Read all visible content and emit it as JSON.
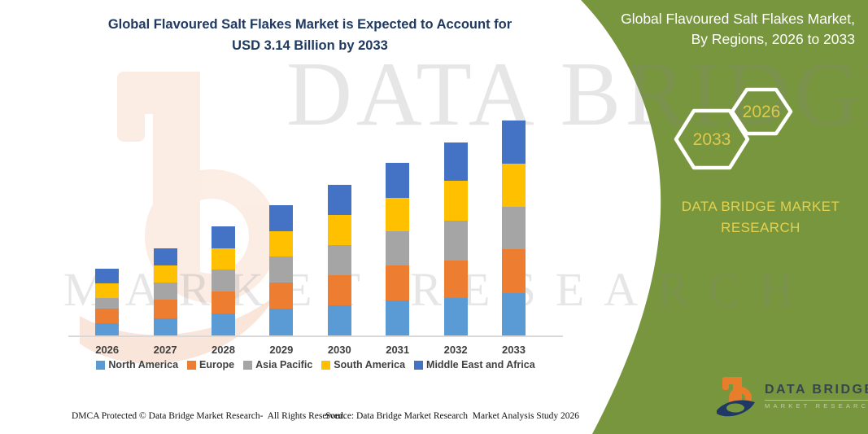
{
  "main_title": {
    "line1": "Global Flavoured Salt Flakes Market is Expected to Account for",
    "line2": "USD 3.14 Billion by 2033"
  },
  "chart_data": {
    "type": "bar",
    "stacked": true,
    "title": "Global Flavoured Salt Flakes Market is Expected to Account for USD 3.14 Billion by 2033",
    "unit": "USD Billion",
    "categories": [
      "2026",
      "2027",
      "2028",
      "2029",
      "2030",
      "2031",
      "2032",
      "2033"
    ],
    "series": [
      {
        "name": "North America",
        "color": "#5B9BD5",
        "values": [
          0.18,
          0.25,
          0.32,
          0.39,
          0.44,
          0.51,
          0.55,
          0.62
        ]
      },
      {
        "name": "Europe",
        "color": "#ED7D31",
        "values": [
          0.21,
          0.27,
          0.32,
          0.39,
          0.44,
          0.52,
          0.55,
          0.64
        ]
      },
      {
        "name": "Asia Pacific",
        "color": "#A5A5A5",
        "values": [
          0.16,
          0.26,
          0.33,
          0.37,
          0.44,
          0.49,
          0.58,
          0.62
        ]
      },
      {
        "name": "South America",
        "color": "#FFC000",
        "values": [
          0.21,
          0.24,
          0.31,
          0.37,
          0.44,
          0.49,
          0.58,
          0.63
        ]
      },
      {
        "name": "Middle East and Africa",
        "color": "#4472C4",
        "values": [
          0.22,
          0.25,
          0.31,
          0.38,
          0.44,
          0.52,
          0.56,
          0.63
        ]
      }
    ],
    "totals_usd_billion": [
      0.98,
      1.27,
      1.59,
      1.9,
      2.2,
      2.53,
      2.82,
      3.14
    ],
    "ylim": [
      0,
      3.5
    ],
    "gridlines": false,
    "legend_position": "bottom",
    "baseline_color": "#D9D9D9"
  },
  "green_panel": {
    "bg_color": "#78963E",
    "title_line1": "Global Flavoured Salt Flakes Market,",
    "title_line2": "By Regions, 2026 to 2033",
    "hexagon_labels": [
      "2033",
      "2026"
    ],
    "brand_line1": "DATA BRIDGE MARKET",
    "brand_line2": "RESEARCH",
    "accent_text_color": "#E3D14F"
  },
  "logo": {
    "name": "DATA BRIDGE",
    "subtitle": "MARKET RESEARCH"
  },
  "watermark": {
    "line1": "DATA BRIDGE",
    "line2": "MARKET RESEARCH"
  },
  "footer": {
    "left": "DMCA Protected © Data Bridge Market Research-  All Rights Reserved.",
    "source": "Source: Data Bridge Market Research  Market Analysis Study 2026"
  }
}
